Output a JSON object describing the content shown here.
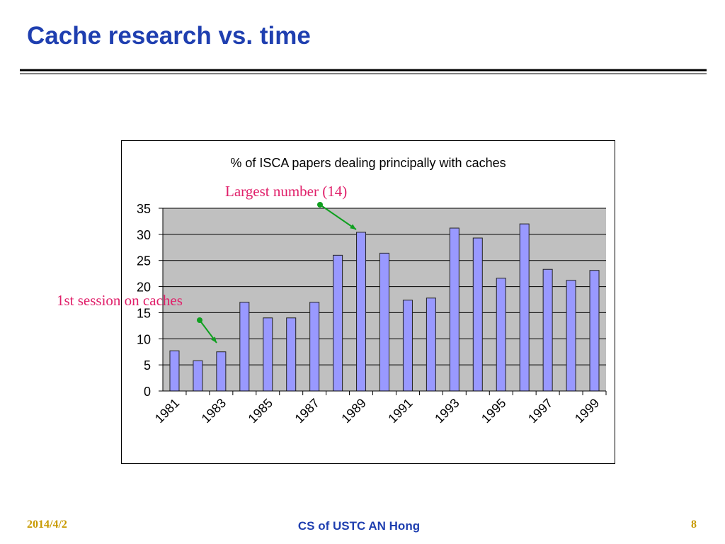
{
  "slide": {
    "title": "Cache research vs. time",
    "footer": {
      "date": "2014/4/2",
      "center": "CS of USTC AN Hong",
      "page": "8"
    }
  },
  "chart_data": {
    "type": "bar",
    "title": "% of ISCA papers dealing principally with caches",
    "categories": [
      "1981",
      null,
      "1983",
      null,
      "1985",
      null,
      "1987",
      null,
      "1989",
      null,
      "1991",
      null,
      "1993",
      null,
      "1995",
      null,
      "1997",
      null,
      "1999"
    ],
    "values": [
      7.7,
      5.8,
      7.5,
      17,
      14,
      14,
      17,
      26,
      30.4,
      26.4,
      17.4,
      17.8,
      31.2,
      29.3,
      21.6,
      32,
      23.3,
      21.2,
      23.1
    ],
    "color": "#9999ff",
    "ylim": [
      0,
      35
    ],
    "yticks": [
      0,
      5,
      10,
      15,
      20,
      25,
      30,
      35
    ],
    "grid": true,
    "annotations": [
      "Largest number (14)",
      "1st session on caches"
    ]
  }
}
